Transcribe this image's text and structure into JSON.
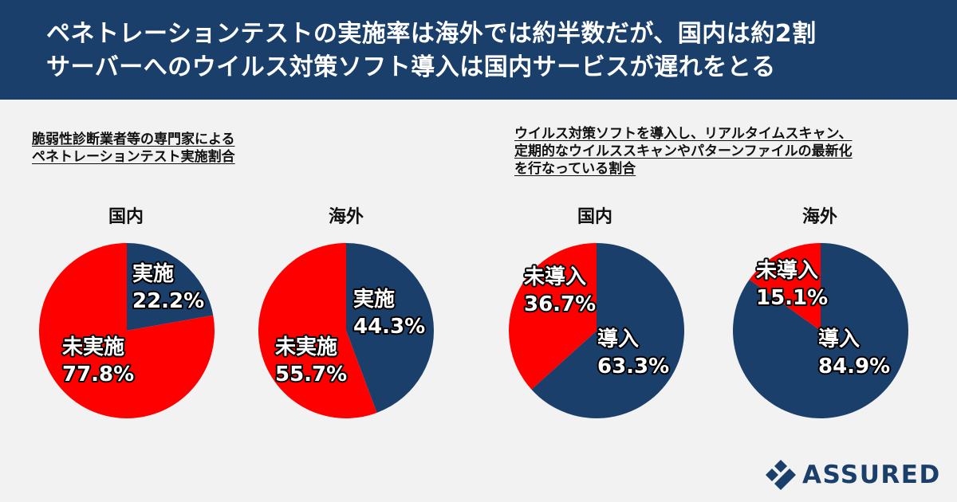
{
  "header": {
    "title_line1": "ペネトレーションテストの実施率は海外では約半数だが、国内は約2割",
    "title_line2": "サーバーへのウイルス対策ソフト導入は国内サービスが遅れをとる"
  },
  "colors": {
    "navy": "#1b3f6b",
    "red": "#ff0000",
    "background": "#f2f2f2"
  },
  "sections": [
    {
      "title_lines": [
        "脆弱性診断業者等の専門家による",
        "ペネトレーションテスト実施割合"
      ]
    },
    {
      "title_lines": [
        "ウイルス対策ソフトを導入し、リアルタイムスキャン、",
        "定期的なウイルススキャンやパターンファイルの最新化",
        "を行なっている割合"
      ]
    }
  ],
  "chart_data": [
    {
      "type": "pie",
      "title": "国内",
      "slices": [
        {
          "label": "実施",
          "value": 22.2,
          "value_label": "22.2%",
          "color": "#1b3f6b"
        },
        {
          "label": "未実施",
          "value": 77.8,
          "value_label": "77.8%",
          "color": "#ff0000"
        }
      ]
    },
    {
      "type": "pie",
      "title": "海外",
      "slices": [
        {
          "label": "実施",
          "value": 44.3,
          "value_label": "44.3%",
          "color": "#1b3f6b"
        },
        {
          "label": "未実施",
          "value": 55.7,
          "value_label": "55.7%",
          "color": "#ff0000"
        }
      ]
    },
    {
      "type": "pie",
      "title": "国内",
      "slices": [
        {
          "label": "導入",
          "value": 63.3,
          "value_label": "63.3%",
          "color": "#1b3f6b"
        },
        {
          "label": "未導入",
          "value": 36.7,
          "value_label": "36.7%",
          "color": "#ff0000"
        }
      ]
    },
    {
      "type": "pie",
      "title": "海外",
      "slices": [
        {
          "label": "導入",
          "value": 84.9,
          "value_label": "84.9%",
          "color": "#1b3f6b"
        },
        {
          "label": "未導入",
          "value": 15.1,
          "value_label": "15.1%",
          "color": "#ff0000"
        }
      ]
    }
  ],
  "logo": {
    "text": "ASSURED",
    "mark": "assured-logo-mark"
  }
}
